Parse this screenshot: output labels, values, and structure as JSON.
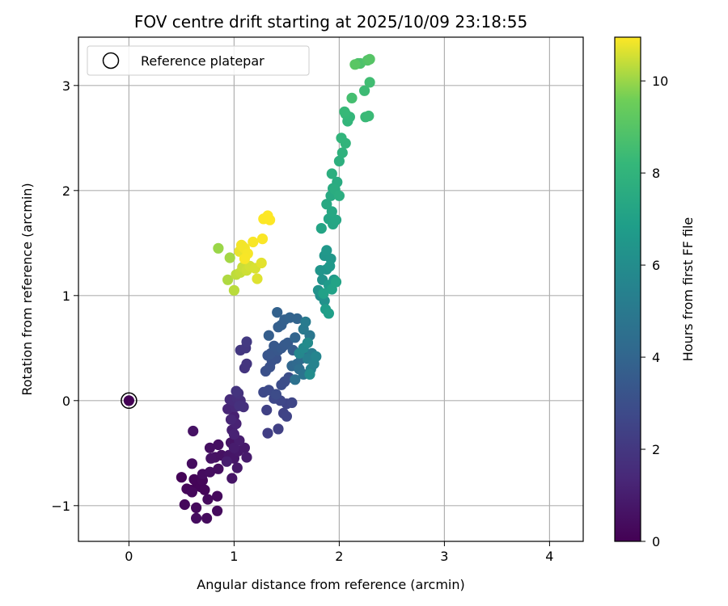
{
  "chart_data": {
    "type": "scatter",
    "title": "FOV centre drift starting at 2025/10/09 23:18:55",
    "xlabel": "Angular distance from reference (arcmin)",
    "ylabel": "Rotation from reference (arcmin)",
    "xlim": [
      -0.48,
      4.32
    ],
    "ylim": [
      -1.34,
      3.46
    ],
    "xticks": [
      0,
      1,
      2,
      3,
      4
    ],
    "yticks": [
      -1,
      0,
      1,
      2,
      3
    ],
    "xtick_labels": [
      "0",
      "1",
      "2",
      "3",
      "4"
    ],
    "ytick_labels": [
      "−1",
      "0",
      "1",
      "2",
      "3"
    ],
    "grid": true,
    "legend": {
      "label": "Reference platepar",
      "placement": "top-left",
      "marker": "hollow circle"
    },
    "reference_point": {
      "x": 0,
      "y": 0
    },
    "colorbar": {
      "label": "Hours from first FF file",
      "colormap": "viridis",
      "range": [
        0,
        10.95
      ],
      "ticks": [
        0,
        2,
        4,
        6,
        8,
        10
      ],
      "tick_labels": [
        "0",
        "2",
        "4",
        "6",
        "8",
        "10"
      ]
    },
    "series_points": [
      [
        0.0,
        0.0,
        0.02
      ],
      [
        0.5,
        -0.73,
        0.1
      ],
      [
        0.58,
        -0.85,
        0.1
      ],
      [
        0.65,
        -0.8,
        0.1
      ],
      [
        0.62,
        -0.75,
        0.15
      ],
      [
        0.68,
        -0.82,
        0.15
      ],
      [
        0.7,
        -0.76,
        0.2
      ],
      [
        0.72,
        -0.85,
        0.2
      ],
      [
        0.55,
        -0.84,
        0.2
      ],
      [
        0.6,
        -0.87,
        0.25
      ],
      [
        0.53,
        -0.99,
        0.25
      ],
      [
        0.64,
        -1.02,
        0.3
      ],
      [
        0.75,
        -0.94,
        0.3
      ],
      [
        0.84,
        -0.91,
        0.3
      ],
      [
        0.84,
        -1.05,
        0.35
      ],
      [
        0.74,
        -1.12,
        0.35
      ],
      [
        0.64,
        -1.12,
        0.4
      ],
      [
        0.6,
        -0.6,
        0.4
      ],
      [
        0.7,
        -0.7,
        0.4
      ],
      [
        0.77,
        -0.68,
        0.45
      ],
      [
        0.85,
        -0.65,
        0.45
      ],
      [
        0.85,
        -0.42,
        0.5
      ],
      [
        0.77,
        -0.45,
        0.5
      ],
      [
        0.82,
        -0.54,
        0.55
      ],
      [
        0.88,
        -0.52,
        0.55
      ],
      [
        0.61,
        -0.29,
        0.6
      ],
      [
        0.78,
        -0.55,
        0.6
      ],
      [
        0.97,
        -0.4,
        0.65
      ],
      [
        0.95,
        -0.52,
        0.7
      ],
      [
        0.98,
        -0.74,
        0.7
      ],
      [
        1.0,
        -0.55,
        0.75
      ],
      [
        1.03,
        -0.64,
        0.8
      ],
      [
        1.04,
        -0.48,
        0.8
      ],
      [
        1.1,
        -0.45,
        0.85
      ],
      [
        1.12,
        -0.54,
        0.9
      ],
      [
        1.0,
        -0.45,
        0.95
      ],
      [
        1.05,
        -0.38,
        1.0
      ],
      [
        0.93,
        -0.58,
        1.0
      ],
      [
        1.0,
        -0.15,
        1.1
      ],
      [
        0.98,
        -0.28,
        1.1
      ],
      [
        1.0,
        -0.32,
        1.2
      ],
      [
        1.02,
        -0.22,
        1.2
      ],
      [
        0.97,
        -0.18,
        1.3
      ],
      [
        0.94,
        -0.08,
        1.3
      ],
      [
        1.01,
        -0.06,
        1.4
      ],
      [
        0.96,
        0.01,
        1.5
      ],
      [
        0.99,
        0.0,
        1.55
      ],
      [
        1.03,
        0.02,
        1.6
      ],
      [
        1.06,
        0.0,
        1.65
      ],
      [
        1.09,
        -0.06,
        1.7
      ],
      [
        1.05,
        -0.05,
        1.75
      ],
      [
        1.04,
        0.07,
        1.8
      ],
      [
        1.02,
        0.09,
        1.85
      ],
      [
        1.1,
        0.31,
        1.9
      ],
      [
        1.12,
        0.35,
        1.95
      ],
      [
        1.06,
        0.48,
        2.0
      ],
      [
        1.11,
        0.5,
        2.05
      ],
      [
        1.12,
        0.56,
        2.1
      ],
      [
        1.32,
        -0.31,
        2.3
      ],
      [
        1.42,
        -0.27,
        2.35
      ],
      [
        1.31,
        -0.09,
        2.4
      ],
      [
        1.47,
        -0.12,
        2.45
      ],
      [
        1.5,
        -0.15,
        2.5
      ],
      [
        1.5,
        -0.03,
        2.55
      ],
      [
        1.55,
        -0.02,
        2.6
      ],
      [
        1.44,
        0.0,
        2.65
      ],
      [
        1.38,
        0.02,
        2.7
      ],
      [
        1.28,
        0.08,
        2.75
      ],
      [
        1.33,
        0.1,
        2.8
      ],
      [
        1.4,
        0.06,
        2.85
      ],
      [
        1.45,
        0.15,
        2.9
      ],
      [
        1.48,
        0.18,
        2.95
      ],
      [
        1.52,
        0.22,
        3.0
      ],
      [
        1.3,
        0.28,
        3.05
      ],
      [
        1.34,
        0.32,
        3.1
      ],
      [
        1.36,
        0.38,
        3.15
      ],
      [
        1.4,
        0.4,
        3.2
      ],
      [
        1.32,
        0.43,
        3.25
      ],
      [
        1.35,
        0.45,
        3.3
      ],
      [
        1.42,
        0.48,
        3.35
      ],
      [
        1.38,
        0.52,
        3.4
      ],
      [
        1.45,
        0.5,
        3.45
      ],
      [
        1.48,
        0.53,
        3.5
      ],
      [
        1.51,
        0.55,
        3.55
      ],
      [
        1.56,
        0.48,
        3.6
      ],
      [
        1.33,
        0.62,
        3.65
      ],
      [
        1.42,
        0.7,
        3.7
      ],
      [
        1.45,
        0.72,
        3.75
      ],
      [
        1.48,
        0.77,
        3.8
      ],
      [
        1.41,
        0.84,
        3.85
      ],
      [
        1.53,
        0.79,
        3.9
      ],
      [
        1.6,
        0.78,
        3.95
      ],
      [
        1.58,
        0.6,
        4.0
      ],
      [
        1.55,
        0.33,
        4.1
      ],
      [
        1.6,
        0.35,
        4.2
      ],
      [
        1.64,
        0.4,
        4.3
      ],
      [
        1.68,
        0.45,
        4.4
      ],
      [
        1.62,
        0.3,
        4.5
      ],
      [
        1.58,
        0.2,
        4.6
      ],
      [
        1.66,
        0.25,
        4.7
      ],
      [
        1.7,
        0.55,
        4.8
      ],
      [
        1.72,
        0.62,
        4.9
      ],
      [
        1.66,
        0.68,
        5.0
      ],
      [
        1.68,
        0.75,
        5.1
      ],
      [
        1.74,
        0.45,
        5.2
      ],
      [
        1.7,
        0.4,
        5.3
      ],
      [
        1.73,
        0.3,
        5.4
      ],
      [
        1.76,
        0.35,
        5.5
      ],
      [
        1.78,
        0.42,
        5.6
      ],
      [
        1.62,
        0.45,
        5.7
      ],
      [
        1.66,
        0.5,
        5.8
      ],
      [
        1.7,
        0.55,
        5.9
      ],
      [
        1.72,
        0.25,
        6.0
      ],
      [
        1.82,
        1.0,
        6.1
      ],
      [
        1.86,
        0.95,
        6.2
      ],
      [
        1.8,
        1.05,
        6.25
      ],
      [
        1.84,
        1.15,
        6.3
      ],
      [
        1.88,
        1.25,
        6.35
      ],
      [
        1.82,
        1.24,
        6.4
      ],
      [
        1.86,
        1.38,
        6.45
      ],
      [
        1.92,
        1.35,
        6.5
      ],
      [
        1.88,
        1.43,
        6.55
      ],
      [
        1.91,
        1.28,
        6.6
      ],
      [
        1.95,
        1.15,
        6.65
      ],
      [
        1.9,
        1.1,
        6.7
      ],
      [
        1.87,
        0.87,
        6.8
      ],
      [
        1.9,
        0.83,
        6.9
      ],
      [
        1.85,
        1.02,
        7.0
      ],
      [
        1.93,
        1.06,
        7.05
      ],
      [
        1.97,
        1.13,
        7.1
      ],
      [
        1.83,
        1.64,
        7.15
      ],
      [
        1.9,
        1.73,
        7.2
      ],
      [
        1.94,
        1.68,
        7.25
      ],
      [
        1.97,
        1.72,
        7.3
      ],
      [
        1.93,
        1.8,
        7.35
      ],
      [
        1.88,
        1.87,
        7.4
      ],
      [
        1.92,
        1.95,
        7.45
      ],
      [
        1.94,
        2.02,
        7.5
      ],
      [
        1.98,
        2.08,
        7.55
      ],
      [
        1.96,
        2.01,
        7.6
      ],
      [
        2.0,
        1.95,
        7.65
      ],
      [
        1.93,
        2.16,
        7.7
      ],
      [
        2.0,
        2.28,
        7.8
      ],
      [
        2.03,
        2.36,
        7.9
      ],
      [
        2.06,
        2.45,
        8.0
      ],
      [
        2.02,
        2.5,
        8.05
      ],
      [
        2.08,
        2.66,
        8.1
      ],
      [
        2.1,
        2.7,
        8.15
      ],
      [
        2.06,
        2.73,
        8.2
      ],
      [
        2.05,
        2.75,
        8.25
      ],
      [
        2.25,
        2.7,
        8.3
      ],
      [
        2.28,
        2.71,
        8.35
      ],
      [
        2.24,
        2.95,
        8.4
      ],
      [
        2.29,
        3.03,
        8.5
      ],
      [
        2.12,
        2.88,
        8.6
      ],
      [
        2.18,
        3.21,
        8.7
      ],
      [
        2.2,
        3.21,
        8.8
      ],
      [
        2.27,
        3.24,
        8.9
      ],
      [
        2.29,
        3.25,
        9.0
      ],
      [
        2.15,
        3.2,
        9.1
      ],
      [
        0.85,
        1.45,
        10.0
      ],
      [
        0.96,
        1.36,
        10.1
      ],
      [
        0.94,
        1.15,
        10.2
      ],
      [
        1.0,
        1.05,
        10.3
      ],
      [
        1.02,
        1.2,
        10.35
      ],
      [
        1.06,
        1.22,
        10.4
      ],
      [
        1.08,
        1.27,
        10.45
      ],
      [
        1.12,
        1.24,
        10.5
      ],
      [
        1.15,
        1.28,
        10.55
      ],
      [
        1.2,
        1.26,
        10.6
      ],
      [
        1.22,
        1.16,
        10.65
      ],
      [
        1.26,
        1.31,
        10.7
      ],
      [
        1.05,
        1.42,
        10.75
      ],
      [
        1.08,
        1.47,
        10.8
      ],
      [
        1.1,
        1.45,
        10.85
      ],
      [
        1.13,
        1.4,
        10.88
      ],
      [
        1.18,
        1.51,
        10.9
      ],
      [
        1.27,
        1.54,
        10.92
      ],
      [
        1.28,
        1.73,
        10.94
      ],
      [
        1.32,
        1.76,
        10.95
      ],
      [
        1.34,
        1.72,
        10.95
      ],
      [
        1.1,
        1.35,
        10.9
      ],
      [
        1.07,
        1.48,
        10.85
      ]
    ]
  }
}
